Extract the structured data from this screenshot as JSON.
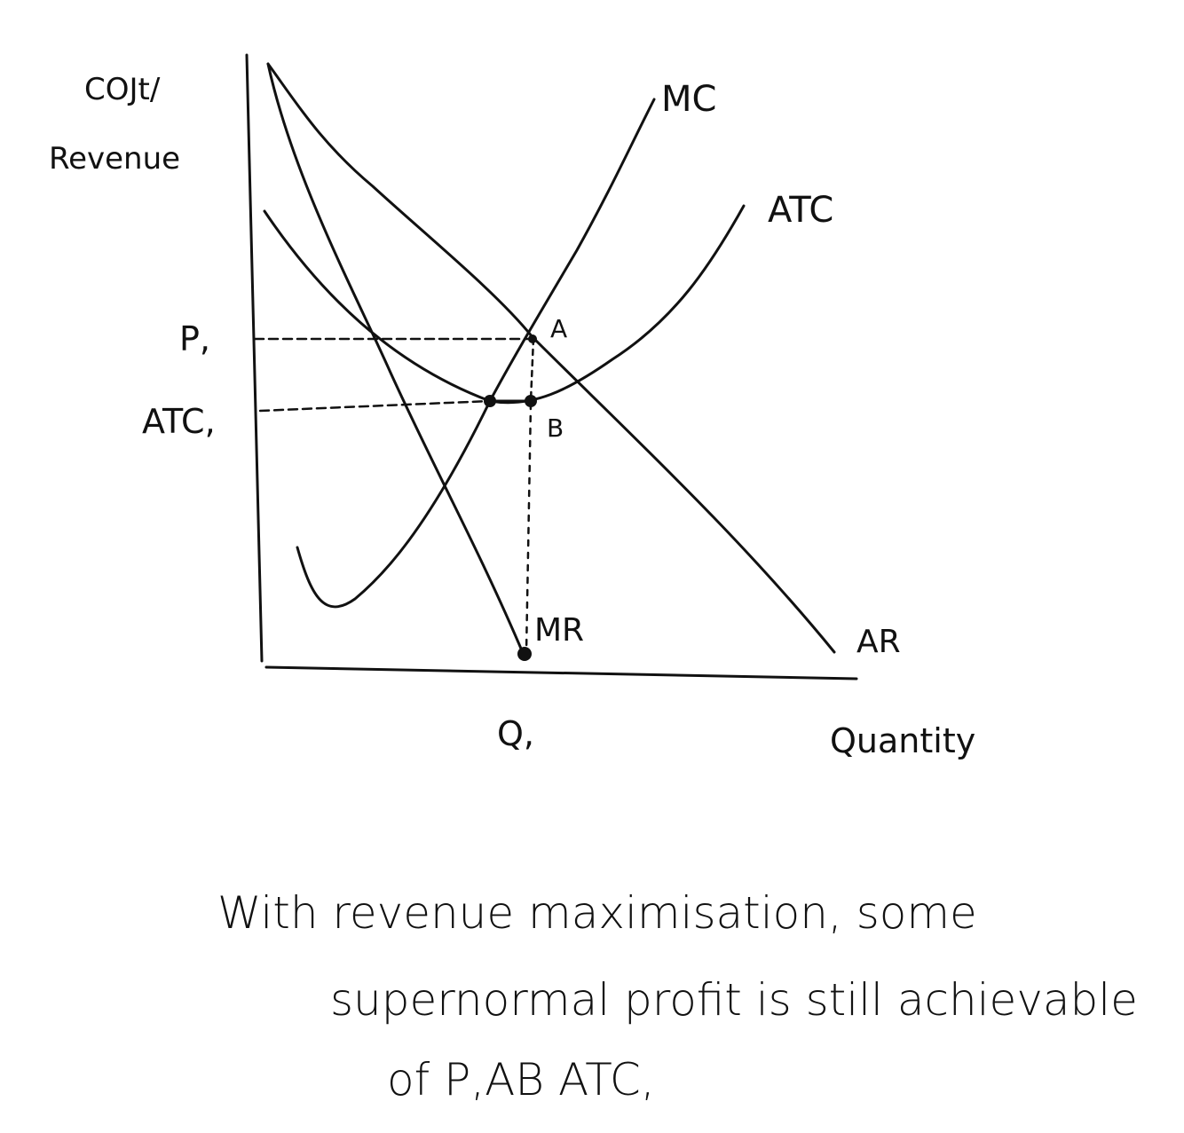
{
  "diagram": {
    "y_axis_label_line1": "COJt/",
    "y_axis_label_line2": "Revenue",
    "x_axis_label": "Quantity",
    "curves": {
      "mc": "MC",
      "atc": "ATC",
      "mr": "MR",
      "ar": "AR"
    },
    "points": {
      "a": "A",
      "b": "B"
    },
    "ticks": {
      "p1": "P,",
      "atc1": "ATC,",
      "q1": "Q,"
    }
  },
  "caption": {
    "line1": "With revenue maximisation, some",
    "line2": "supernormal profit is still achievable",
    "line3": "of P,AB ATC,"
  }
}
